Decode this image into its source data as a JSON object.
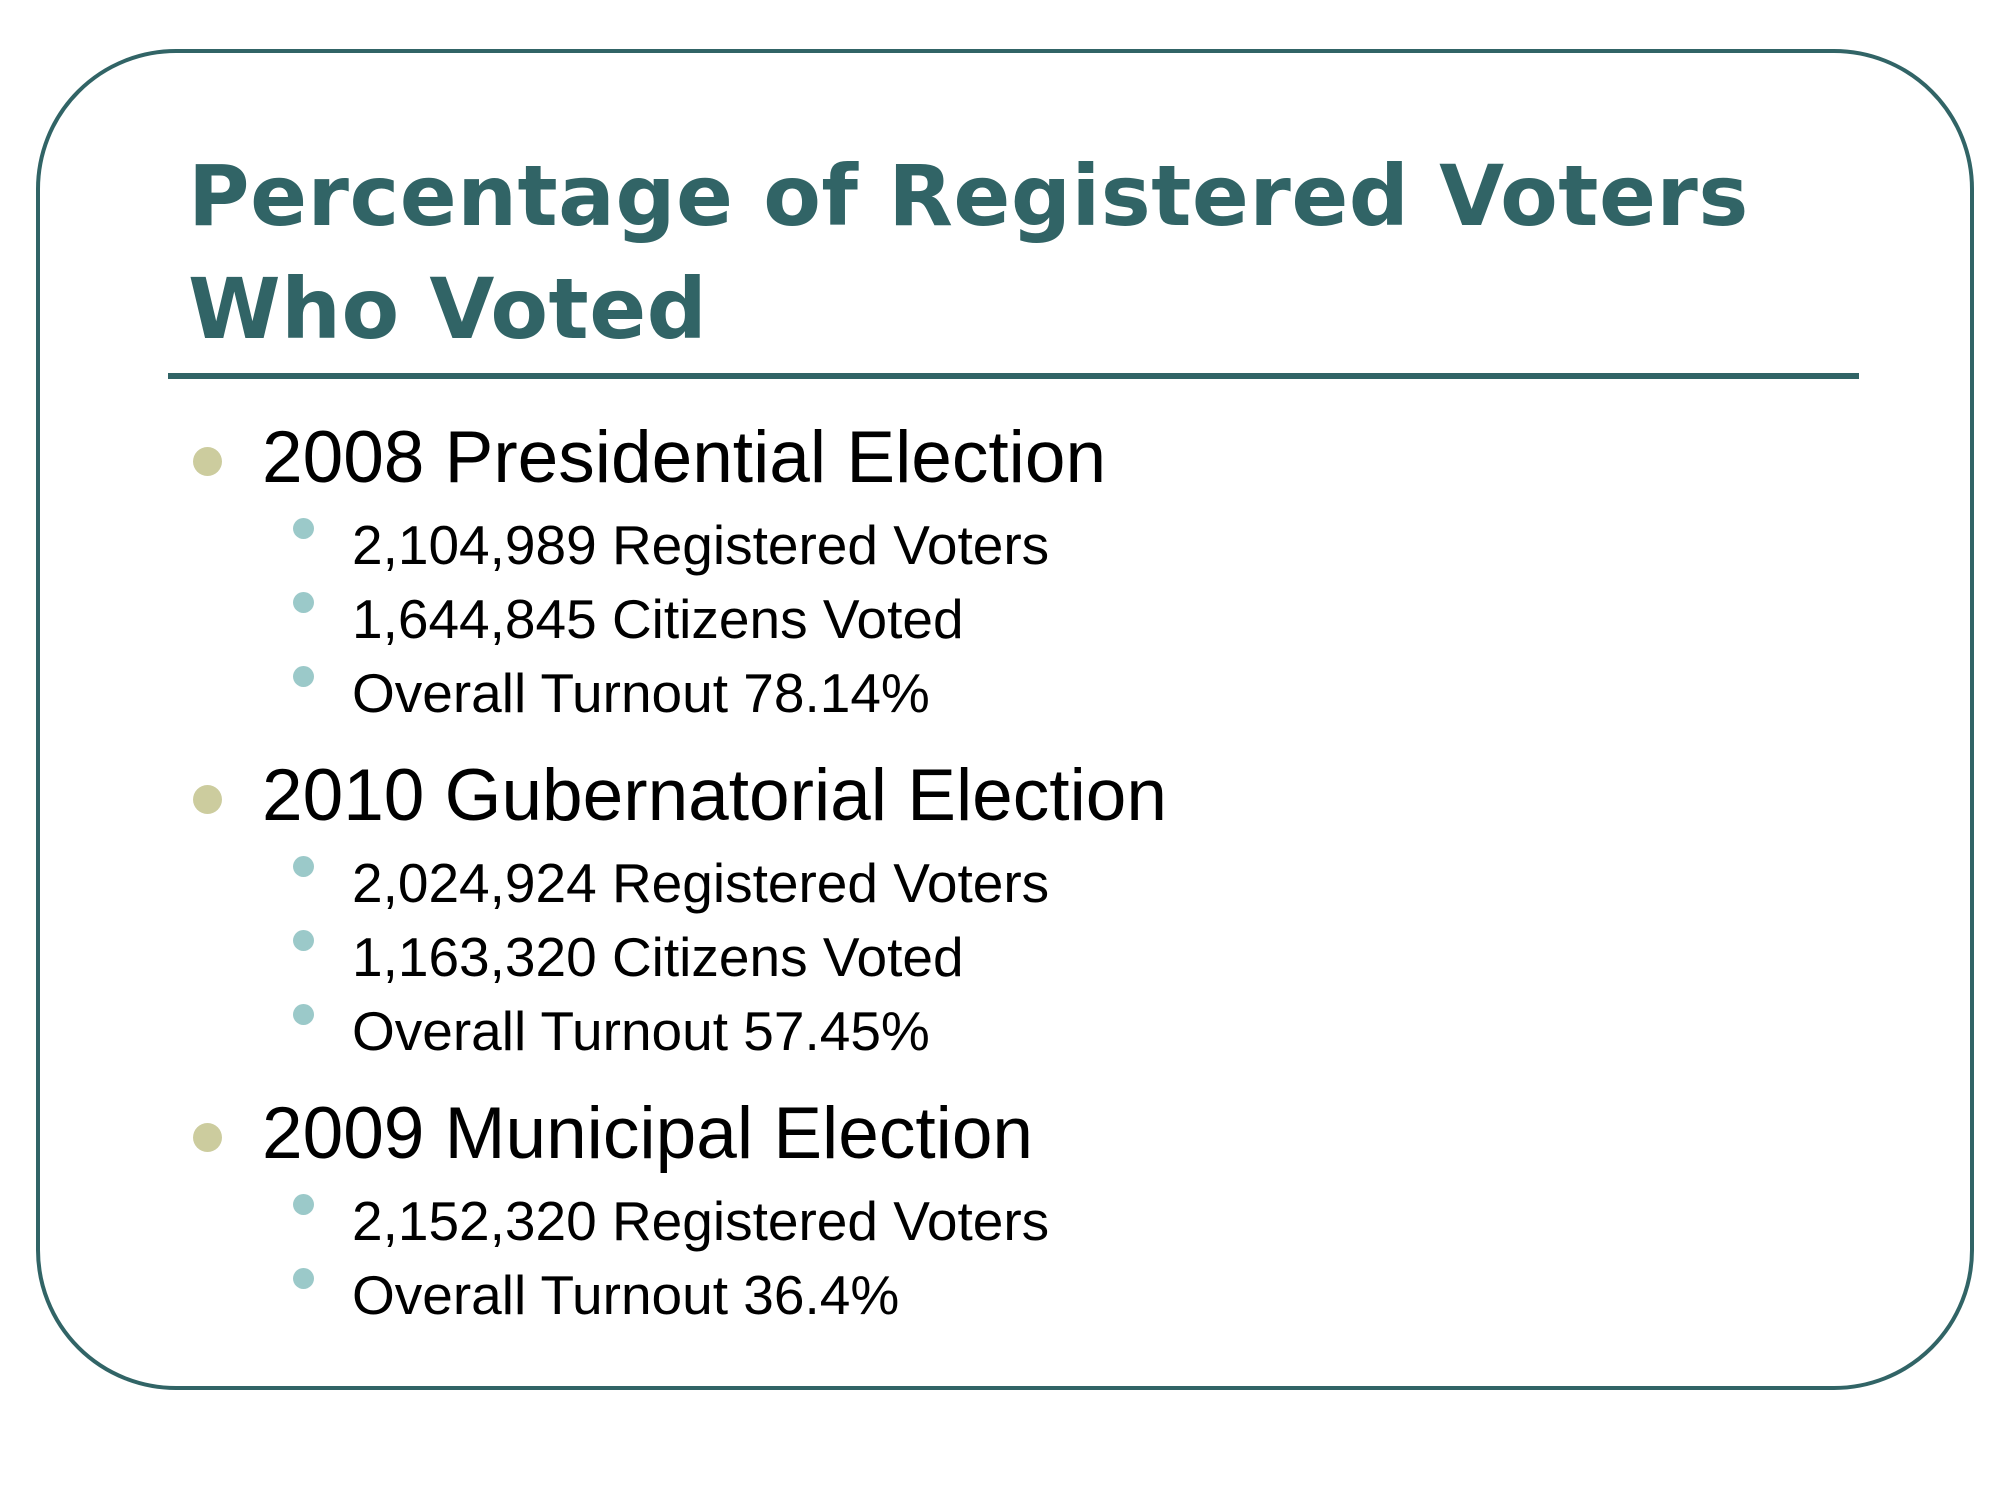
{
  "slide": {
    "title": "Percentage of Registered Voters Who Voted",
    "accent_color": "#316466",
    "primary_bullet_color": "#cccc9e",
    "secondary_bullet_color": "#9bc9c9",
    "sections": [
      {
        "heading": "2008 Presidential Election",
        "items": [
          "2,104,989 Registered Voters",
          "1,644,845 Citizens Voted",
          "Overall Turnout 78.14%"
        ]
      },
      {
        "heading": "2010 Gubernatorial Election",
        "items": [
          "2,024,924 Registered Voters",
          "1,163,320 Citizens Voted",
          "Overall Turnout 57.45%"
        ]
      },
      {
        "heading": "2009 Municipal Election",
        "items": [
          "2,152,320 Registered Voters",
          "Overall Turnout 36.4%"
        ]
      }
    ]
  }
}
